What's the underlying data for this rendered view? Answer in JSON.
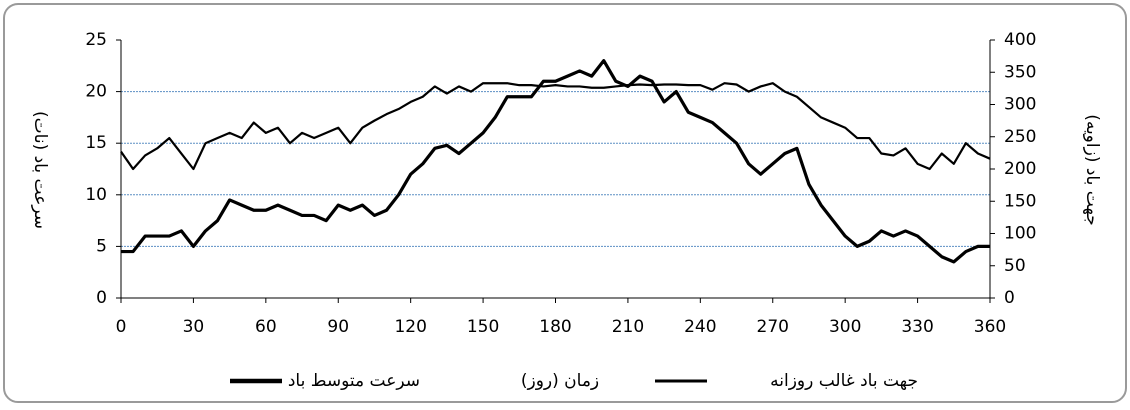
{
  "chart_data": {
    "type": "line",
    "x_label": "زمان (روز)",
    "y_label": "سرعت باد (نات)",
    "y2_label": "جهت باد (زاویه)",
    "x": [
      0,
      5,
      10,
      15,
      20,
      25,
      30,
      35,
      40,
      45,
      50,
      55,
      60,
      65,
      70,
      75,
      80,
      85,
      90,
      95,
      100,
      105,
      110,
      115,
      120,
      125,
      130,
      135,
      140,
      145,
      150,
      155,
      160,
      165,
      170,
      175,
      180,
      185,
      190,
      195,
      200,
      205,
      210,
      215,
      220,
      225,
      230,
      235,
      240,
      245,
      250,
      255,
      260,
      265,
      270,
      275,
      280,
      285,
      290,
      295,
      300,
      305,
      310,
      315,
      320,
      325,
      330,
      335,
      340,
      345,
      350,
      355,
      360
    ],
    "series": [
      {
        "name": "سرعت متوسط باد",
        "color": "#000000",
        "values": [
          4.5,
          4.5,
          6,
          6,
          6,
          6.5,
          5,
          6.5,
          7.5,
          9.5,
          9,
          8.5,
          8.5,
          9,
          8.5,
          8,
          8,
          7.5,
          9,
          8.5,
          9,
          8,
          8.5,
          10,
          12,
          13,
          14.5,
          14.8,
          14,
          15,
          16,
          17.5,
          19.5,
          19.5,
          19.5,
          21,
          21,
          21.5,
          22,
          21.5,
          23,
          21,
          20.5,
          21.5,
          21,
          19,
          20,
          18,
          17.5,
          17,
          16,
          15,
          13,
          12,
          13,
          14,
          14.5,
          11,
          9,
          7.5,
          6,
          5,
          5.5,
          6.5,
          6,
          6.5,
          6,
          5,
          4,
          3.5,
          4.5,
          5,
          5
        ]
      },
      {
        "name": "جهت باد غالب روزانه",
        "color": "#000000",
        "axis": "y2",
        "values": [
          227,
          200,
          221,
          232,
          248,
          224,
          200,
          240,
          248,
          256,
          248,
          272,
          256,
          264,
          240,
          256,
          248,
          256,
          264,
          240,
          264,
          275,
          285,
          293,
          304,
          312,
          328,
          317,
          328,
          320,
          333,
          333,
          333,
          330,
          330,
          328,
          330,
          328,
          328,
          326,
          326,
          328,
          330,
          331,
          330,
          331,
          331,
          330,
          330,
          323,
          333,
          331,
          320,
          328,
          333,
          320,
          312,
          296,
          280,
          272,
          264,
          248,
          248,
          224,
          221,
          232,
          208,
          200,
          224,
          208,
          240,
          224,
          216
        ]
      }
    ],
    "xlim": [
      0,
      360
    ],
    "xticks": [
      0,
      30,
      60,
      90,
      120,
      150,
      180,
      210,
      240,
      270,
      300,
      330,
      360
    ],
    "ylim": [
      0,
      25
    ],
    "yticks": [
      0,
      5,
      10,
      15,
      20,
      25
    ],
    "y2lim": [
      0,
      400
    ],
    "y2ticks": [
      0,
      50,
      100,
      150,
      200,
      250,
      300,
      350,
      400
    ],
    "grid": true
  }
}
